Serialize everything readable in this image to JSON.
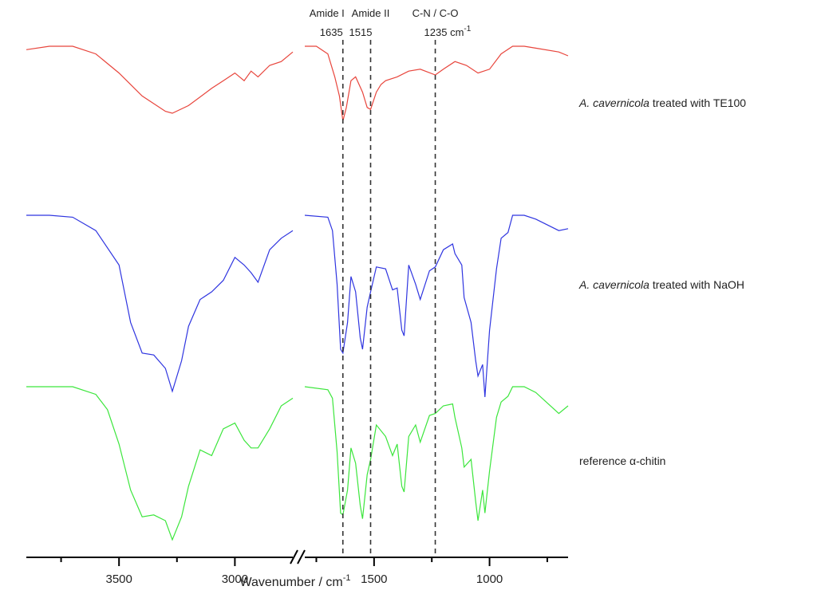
{
  "chart_data": {
    "type": "line",
    "x_axis": {
      "label": "Wavenumber / cm",
      "label_superscript": "-1",
      "reversed": true,
      "break": [
        1800,
        2750
      ],
      "range": [
        3900,
        660
      ],
      "ticks": [
        3500,
        3000,
        1500,
        1000
      ],
      "tick_labels": [
        "3500",
        "3000",
        "1500",
        "1000"
      ]
    },
    "markers": [
      {
        "name": "Amide I",
        "value_label": "1635",
        "x": 1635
      },
      {
        "name": "Amide II",
        "value_label": "1515",
        "x": 1515
      },
      {
        "name": "C-N / C-O",
        "value_label": "1235 cm",
        "value_sup": "-1",
        "x": 1235
      }
    ],
    "series": [
      {
        "name": "A. cavernicola treated with TE100",
        "label_italic": "A. cavernicola",
        "label_rest": " treated with TE100",
        "color": "#e8453c",
        "points": [
          [
            3900,
            0.9
          ],
          [
            3800,
            0.0
          ],
          [
            3700,
            0.0
          ],
          [
            3600,
            2.0
          ],
          [
            3500,
            7.0
          ],
          [
            3400,
            13.0
          ],
          [
            3300,
            17.0
          ],
          [
            3270,
            17.5
          ],
          [
            3200,
            15.5
          ],
          [
            3100,
            11.0
          ],
          [
            3050,
            9.0
          ],
          [
            3000,
            7.0
          ],
          [
            2960,
            9.0
          ],
          [
            2930,
            6.5
          ],
          [
            2900,
            8.0
          ],
          [
            2850,
            5.0
          ],
          [
            2800,
            4.0
          ],
          [
            2750,
            1.5
          ],
          [
            1800,
            0.0
          ],
          [
            1750,
            0.0
          ],
          [
            1700,
            2.0
          ],
          [
            1670,
            8.0
          ],
          [
            1650,
            13.0
          ],
          [
            1635,
            19.5
          ],
          [
            1620,
            16.0
          ],
          [
            1600,
            9.0
          ],
          [
            1580,
            8.0
          ],
          [
            1550,
            12.0
          ],
          [
            1530,
            16.0
          ],
          [
            1515,
            16.5
          ],
          [
            1490,
            12.0
          ],
          [
            1470,
            10.0
          ],
          [
            1450,
            9.0
          ],
          [
            1400,
            8.0
          ],
          [
            1350,
            6.5
          ],
          [
            1300,
            6.0
          ],
          [
            1235,
            7.5
          ],
          [
            1200,
            6.0
          ],
          [
            1150,
            4.0
          ],
          [
            1100,
            5.0
          ],
          [
            1050,
            7.0
          ],
          [
            1000,
            6.0
          ],
          [
            950,
            2.0
          ],
          [
            900,
            0.0
          ],
          [
            850,
            0.0
          ],
          [
            800,
            0.5
          ],
          [
            700,
            1.5
          ],
          [
            660,
            2.5
          ]
        ]
      },
      {
        "name": "A. cavernicola treated with NaOH",
        "label_italic": "A. cavernicola",
        "label_rest": " treated with NaOH",
        "color": "#2f35e0",
        "points": [
          [
            3900,
            0.0
          ],
          [
            3800,
            0.0
          ],
          [
            3700,
            0.5
          ],
          [
            3600,
            4.0
          ],
          [
            3500,
            13.0
          ],
          [
            3450,
            28.0
          ],
          [
            3400,
            36.0
          ],
          [
            3350,
            36.5
          ],
          [
            3300,
            40.0
          ],
          [
            3270,
            46.0
          ],
          [
            3230,
            38.0
          ],
          [
            3200,
            29.0
          ],
          [
            3150,
            22.0
          ],
          [
            3100,
            20.0
          ],
          [
            3050,
            17.0
          ],
          [
            3000,
            11.0
          ],
          [
            2960,
            13.0
          ],
          [
            2930,
            15.0
          ],
          [
            2900,
            17.5
          ],
          [
            2850,
            9.0
          ],
          [
            2800,
            6.0
          ],
          [
            2750,
            4.0
          ],
          [
            1800,
            0.0
          ],
          [
            1700,
            0.5
          ],
          [
            1680,
            4.0
          ],
          [
            1660,
            18.0
          ],
          [
            1645,
            35.0
          ],
          [
            1635,
            36.0
          ],
          [
            1615,
            28.0
          ],
          [
            1600,
            16.0
          ],
          [
            1580,
            20.0
          ],
          [
            1560,
            32.0
          ],
          [
            1550,
            35.0
          ],
          [
            1530,
            24.0
          ],
          [
            1515,
            20.0
          ],
          [
            1490,
            13.5
          ],
          [
            1450,
            14.0
          ],
          [
            1420,
            19.5
          ],
          [
            1400,
            19.0
          ],
          [
            1380,
            30.0
          ],
          [
            1370,
            31.5
          ],
          [
            1350,
            13.0
          ],
          [
            1320,
            18.0
          ],
          [
            1300,
            22.0
          ],
          [
            1260,
            14.5
          ],
          [
            1235,
            13.5
          ],
          [
            1200,
            9.0
          ],
          [
            1160,
            7.5
          ],
          [
            1150,
            10.0
          ],
          [
            1120,
            13.0
          ],
          [
            1110,
            21.5
          ],
          [
            1080,
            28.0
          ],
          [
            1060,
            38.0
          ],
          [
            1050,
            42.0
          ],
          [
            1030,
            39.0
          ],
          [
            1020,
            47.5
          ],
          [
            1000,
            30.0
          ],
          [
            970,
            14.0
          ],
          [
            950,
            6.0
          ],
          [
            920,
            4.5
          ],
          [
            900,
            0.0
          ],
          [
            850,
            0.0
          ],
          [
            800,
            1.0
          ],
          [
            700,
            4.0
          ],
          [
            660,
            3.5
          ]
        ]
      },
      {
        "name": "reference α-chitin",
        "label_italic": "",
        "label_rest": "reference α-chitin",
        "color": "#3ce63c",
        "points": [
          [
            3900,
            0.0
          ],
          [
            3700,
            0.0
          ],
          [
            3600,
            2.0
          ],
          [
            3550,
            6.0
          ],
          [
            3500,
            15.0
          ],
          [
            3450,
            27.0
          ],
          [
            3400,
            34.0
          ],
          [
            3350,
            33.5
          ],
          [
            3300,
            35.0
          ],
          [
            3270,
            40.0
          ],
          [
            3230,
            34.0
          ],
          [
            3200,
            26.0
          ],
          [
            3150,
            16.5
          ],
          [
            3100,
            18.0
          ],
          [
            3050,
            11.0
          ],
          [
            3000,
            9.5
          ],
          [
            2960,
            14.0
          ],
          [
            2930,
            16.0
          ],
          [
            2900,
            16.0
          ],
          [
            2850,
            11.0
          ],
          [
            2800,
            5.0
          ],
          [
            2750,
            3.0
          ],
          [
            1800,
            0.0
          ],
          [
            1700,
            0.8
          ],
          [
            1680,
            3.0
          ],
          [
            1660,
            17.0
          ],
          [
            1645,
            33.0
          ],
          [
            1635,
            33.5
          ],
          [
            1615,
            27.0
          ],
          [
            1600,
            16.0
          ],
          [
            1580,
            20.0
          ],
          [
            1560,
            31.0
          ],
          [
            1550,
            34.5
          ],
          [
            1530,
            23.0
          ],
          [
            1515,
            19.0
          ],
          [
            1490,
            10.0
          ],
          [
            1450,
            13.0
          ],
          [
            1420,
            18.0
          ],
          [
            1400,
            15.0
          ],
          [
            1380,
            26.0
          ],
          [
            1370,
            27.5
          ],
          [
            1350,
            13.0
          ],
          [
            1320,
            10.0
          ],
          [
            1300,
            14.5
          ],
          [
            1260,
            7.5
          ],
          [
            1235,
            7.0
          ],
          [
            1200,
            5.0
          ],
          [
            1160,
            4.5
          ],
          [
            1150,
            8.0
          ],
          [
            1120,
            16.0
          ],
          [
            1110,
            21.0
          ],
          [
            1080,
            19.0
          ],
          [
            1060,
            30.0
          ],
          [
            1050,
            35.0
          ],
          [
            1030,
            27.0
          ],
          [
            1020,
            33.0
          ],
          [
            1000,
            22.0
          ],
          [
            970,
            8.0
          ],
          [
            950,
            4.0
          ],
          [
            920,
            2.5
          ],
          [
            900,
            0.0
          ],
          [
            850,
            0.0
          ],
          [
            800,
            1.5
          ],
          [
            700,
            7.0
          ],
          [
            660,
            5.0
          ]
        ]
      }
    ],
    "y_axis": {
      "label": "",
      "ticks_shown": false
    },
    "grid": false,
    "legend": "labels placed right of each trace"
  }
}
